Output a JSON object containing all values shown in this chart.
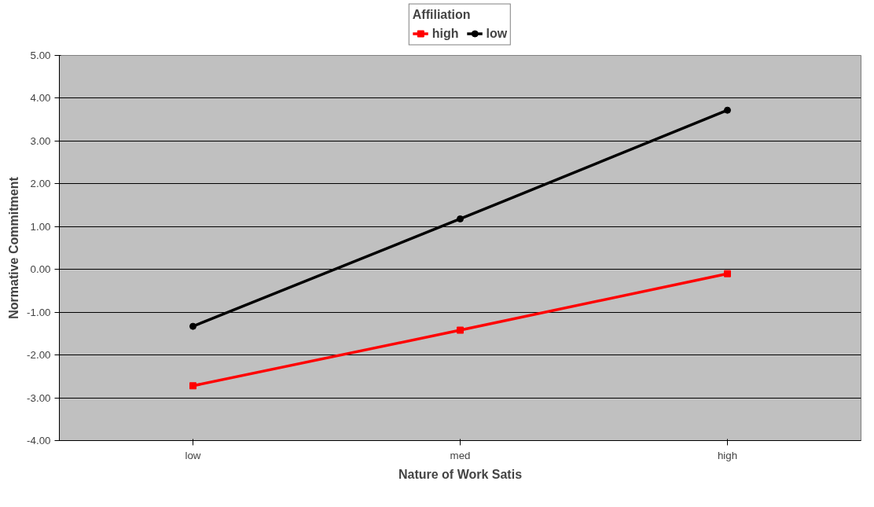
{
  "chart_data": {
    "type": "line",
    "xlabel": "Nature of Work Satis",
    "ylabel": "Normative Commitment",
    "legend_title": "Affiliation",
    "categories": [
      "low",
      "med",
      "high"
    ],
    "series": [
      {
        "name": "high",
        "color": "#ff0000",
        "marker": "square",
        "values": [
          -2.72,
          -1.42,
          -0.1
        ]
      },
      {
        "name": "low",
        "color": "#000000",
        "marker": "circle",
        "values": [
          -1.33,
          1.18,
          3.72
        ]
      }
    ],
    "ylim": [
      -4,
      5
    ],
    "yticks": [
      {
        "value": -4,
        "label": "-4.00"
      },
      {
        "value": -3,
        "label": "-3.00"
      },
      {
        "value": -2,
        "label": "-2.00"
      },
      {
        "value": -1,
        "label": "-1.00"
      },
      {
        "value": 0,
        "label": "0.00"
      },
      {
        "value": 1,
        "label": "1.00"
      },
      {
        "value": 2,
        "label": "2.00"
      },
      {
        "value": 3,
        "label": "3.00"
      },
      {
        "value": 4,
        "label": "4.00"
      },
      {
        "value": 5,
        "label": "5.00"
      }
    ],
    "grid": "y",
    "legend": "top",
    "line_style": "solid"
  }
}
